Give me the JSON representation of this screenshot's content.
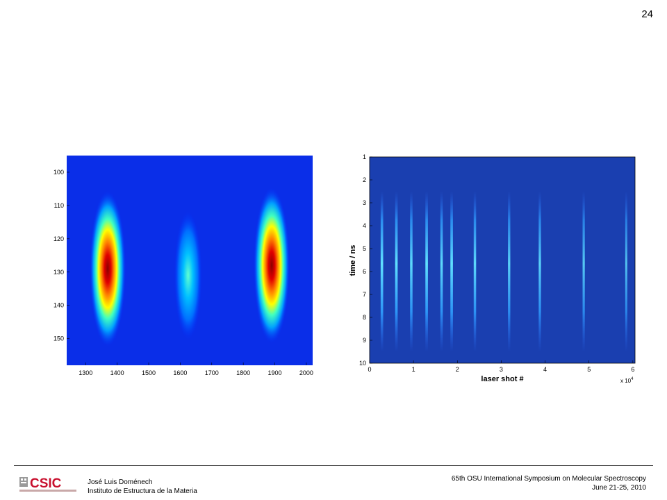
{
  "page_number": "24",
  "footer": {
    "author": "José Luis Doménech",
    "institution": "Instituto de Estructura de la Materia",
    "conference": "65th OSU International Symposium on Molecular Spectroscopy",
    "dates": "June 21-25, 2010",
    "logo_text": "CSIC"
  },
  "chart_data": [
    {
      "type": "heatmap",
      "title": "",
      "xlabel": "",
      "ylabel": "",
      "xlim": [
        1240,
        2020
      ],
      "ylim": [
        158,
        95
      ],
      "x_ticks": [
        "1300",
        "1400",
        "1500",
        "1600",
        "1700",
        "1800",
        "1900",
        "2000"
      ],
      "y_ticks": [
        "100",
        "110",
        "120",
        "130",
        "140",
        "150"
      ],
      "colormap": "jet",
      "peaks": [
        {
          "x": 1370,
          "y": 129,
          "intensity": 1.0
        },
        {
          "x": 1625,
          "y": 131,
          "intensity": 0.45
        },
        {
          "x": 1890,
          "y": 128,
          "intensity": 1.0
        }
      ]
    },
    {
      "type": "heatmap",
      "title": "",
      "xlabel": "laser shot #",
      "ylabel": "time / ns",
      "x_multiplier": "x 10",
      "x_multiplier_exponent": "4",
      "xlim": [
        0,
        6.05
      ],
      "ylim": [
        1,
        10
      ],
      "x_ticks": [
        "0",
        "1",
        "2",
        "3",
        "4",
        "5",
        "6"
      ],
      "y_ticks": [
        "1",
        "2",
        "3",
        "4",
        "5",
        "6",
        "7",
        "8",
        "9",
        "10"
      ],
      "colormap": "jet",
      "line_positions": [
        0.28,
        0.61,
        0.95,
        1.3,
        1.64,
        1.87,
        2.4,
        3.18,
        3.88,
        4.88,
        5.85
      ],
      "line_intensities": [
        0.55,
        0.55,
        0.5,
        0.55,
        0.5,
        0.55,
        0.5,
        0.45,
        0.45,
        0.4,
        0.35
      ],
      "line_time_range": [
        2.5,
        9.5
      ]
    }
  ]
}
